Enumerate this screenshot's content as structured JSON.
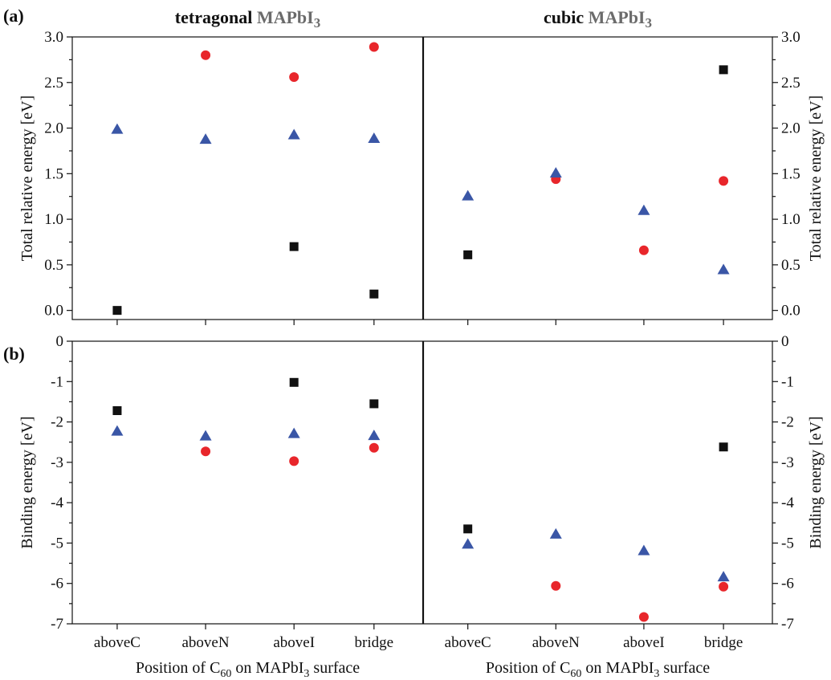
{
  "figure": {
    "panel_labels": [
      "(a)",
      "(b)"
    ],
    "column_titles": [
      {
        "prefix": "tetragonal ",
        "formula": "MAPbI",
        "sub": "3"
      },
      {
        "prefix": "cubic ",
        "formula": "MAPbI",
        "sub": "3"
      }
    ],
    "xlabel": {
      "pre": "Position of C",
      "sub1": "60",
      "mid": " on MAPbI",
      "sub2": "3",
      "post": " surface"
    },
    "accent_colors": {
      "square": "#111111",
      "circle": "#e8262b",
      "triangle": "#3a56a6",
      "title_formula": "#6b6b6b"
    }
  },
  "chart_data": [
    {
      "type": "scatter",
      "panel": "(a)",
      "structure": "tetragonal MAPbI3",
      "title": "tetragonal MAPbI3",
      "ylabel": "Total relative energy [eV]",
      "categories": [
        "aboveC",
        "aboveN",
        "aboveI",
        "bridge"
      ],
      "ylim": [
        -0.1,
        3.0
      ],
      "yticks": [
        "0.0",
        "0.5",
        "1.0",
        "1.5",
        "2.0",
        "2.5",
        "3.0"
      ],
      "series": [
        {
          "marker": "square",
          "color": "#111111",
          "values": [
            0.0,
            null,
            0.7,
            0.18
          ]
        },
        {
          "marker": "circle",
          "color": "#e8262b",
          "values": [
            null,
            2.8,
            2.56,
            2.89
          ]
        },
        {
          "marker": "triangle",
          "color": "#3a56a6",
          "values": [
            1.99,
            1.88,
            1.93,
            1.89
          ]
        }
      ]
    },
    {
      "type": "scatter",
      "panel": "(a)",
      "structure": "cubic MAPbI3",
      "title": "cubic MAPbI3",
      "ylabel": "Total relative energy [eV]",
      "categories": [
        "aboveC",
        "aboveN",
        "aboveI",
        "bridge"
      ],
      "ylim": [
        -0.1,
        3.0
      ],
      "yticks": [
        "0.0",
        "0.5",
        "1.0",
        "1.5",
        "2.0",
        "2.5",
        "3.0"
      ],
      "series": [
        {
          "marker": "square",
          "color": "#111111",
          "values": [
            0.61,
            null,
            null,
            2.64
          ]
        },
        {
          "marker": "circle",
          "color": "#e8262b",
          "values": [
            null,
            1.44,
            0.66,
            1.42
          ]
        },
        {
          "marker": "triangle",
          "color": "#3a56a6",
          "values": [
            1.26,
            1.51,
            1.1,
            0.45
          ]
        }
      ]
    },
    {
      "type": "scatter",
      "panel": "(b)",
      "structure": "tetragonal MAPbI3",
      "ylabel": "Binding energy [eV]",
      "categories": [
        "aboveC",
        "aboveN",
        "aboveI",
        "bridge"
      ],
      "ylim": [
        -7,
        0
      ],
      "yticks": [
        "0",
        "-1",
        "-2",
        "-3",
        "-4",
        "-5",
        "-6",
        "-7"
      ],
      "series": [
        {
          "marker": "square",
          "color": "#111111",
          "values": [
            -1.72,
            null,
            -1.02,
            -1.55
          ]
        },
        {
          "marker": "circle",
          "color": "#e8262b",
          "values": [
            null,
            -2.73,
            -2.97,
            -2.64
          ]
        },
        {
          "marker": "triangle",
          "color": "#3a56a6",
          "values": [
            -2.22,
            -2.34,
            -2.28,
            -2.33
          ]
        }
      ]
    },
    {
      "type": "scatter",
      "panel": "(b)",
      "structure": "cubic MAPbI3",
      "ylabel": "Binding energy [eV]",
      "categories": [
        "aboveC",
        "aboveN",
        "aboveI",
        "bridge"
      ],
      "ylim": [
        -7,
        0
      ],
      "yticks": [
        "0",
        "-1",
        "-2",
        "-3",
        "-4",
        "-5",
        "-6",
        "-7"
      ],
      "series": [
        {
          "marker": "square",
          "color": "#111111",
          "values": [
            -4.65,
            null,
            null,
            -2.62
          ]
        },
        {
          "marker": "circle",
          "color": "#e8262b",
          "values": [
            null,
            -6.06,
            -6.83,
            -6.08
          ]
        },
        {
          "marker": "triangle",
          "color": "#3a56a6",
          "values": [
            -5.02,
            -4.77,
            -5.18,
            -5.83
          ]
        }
      ]
    }
  ]
}
